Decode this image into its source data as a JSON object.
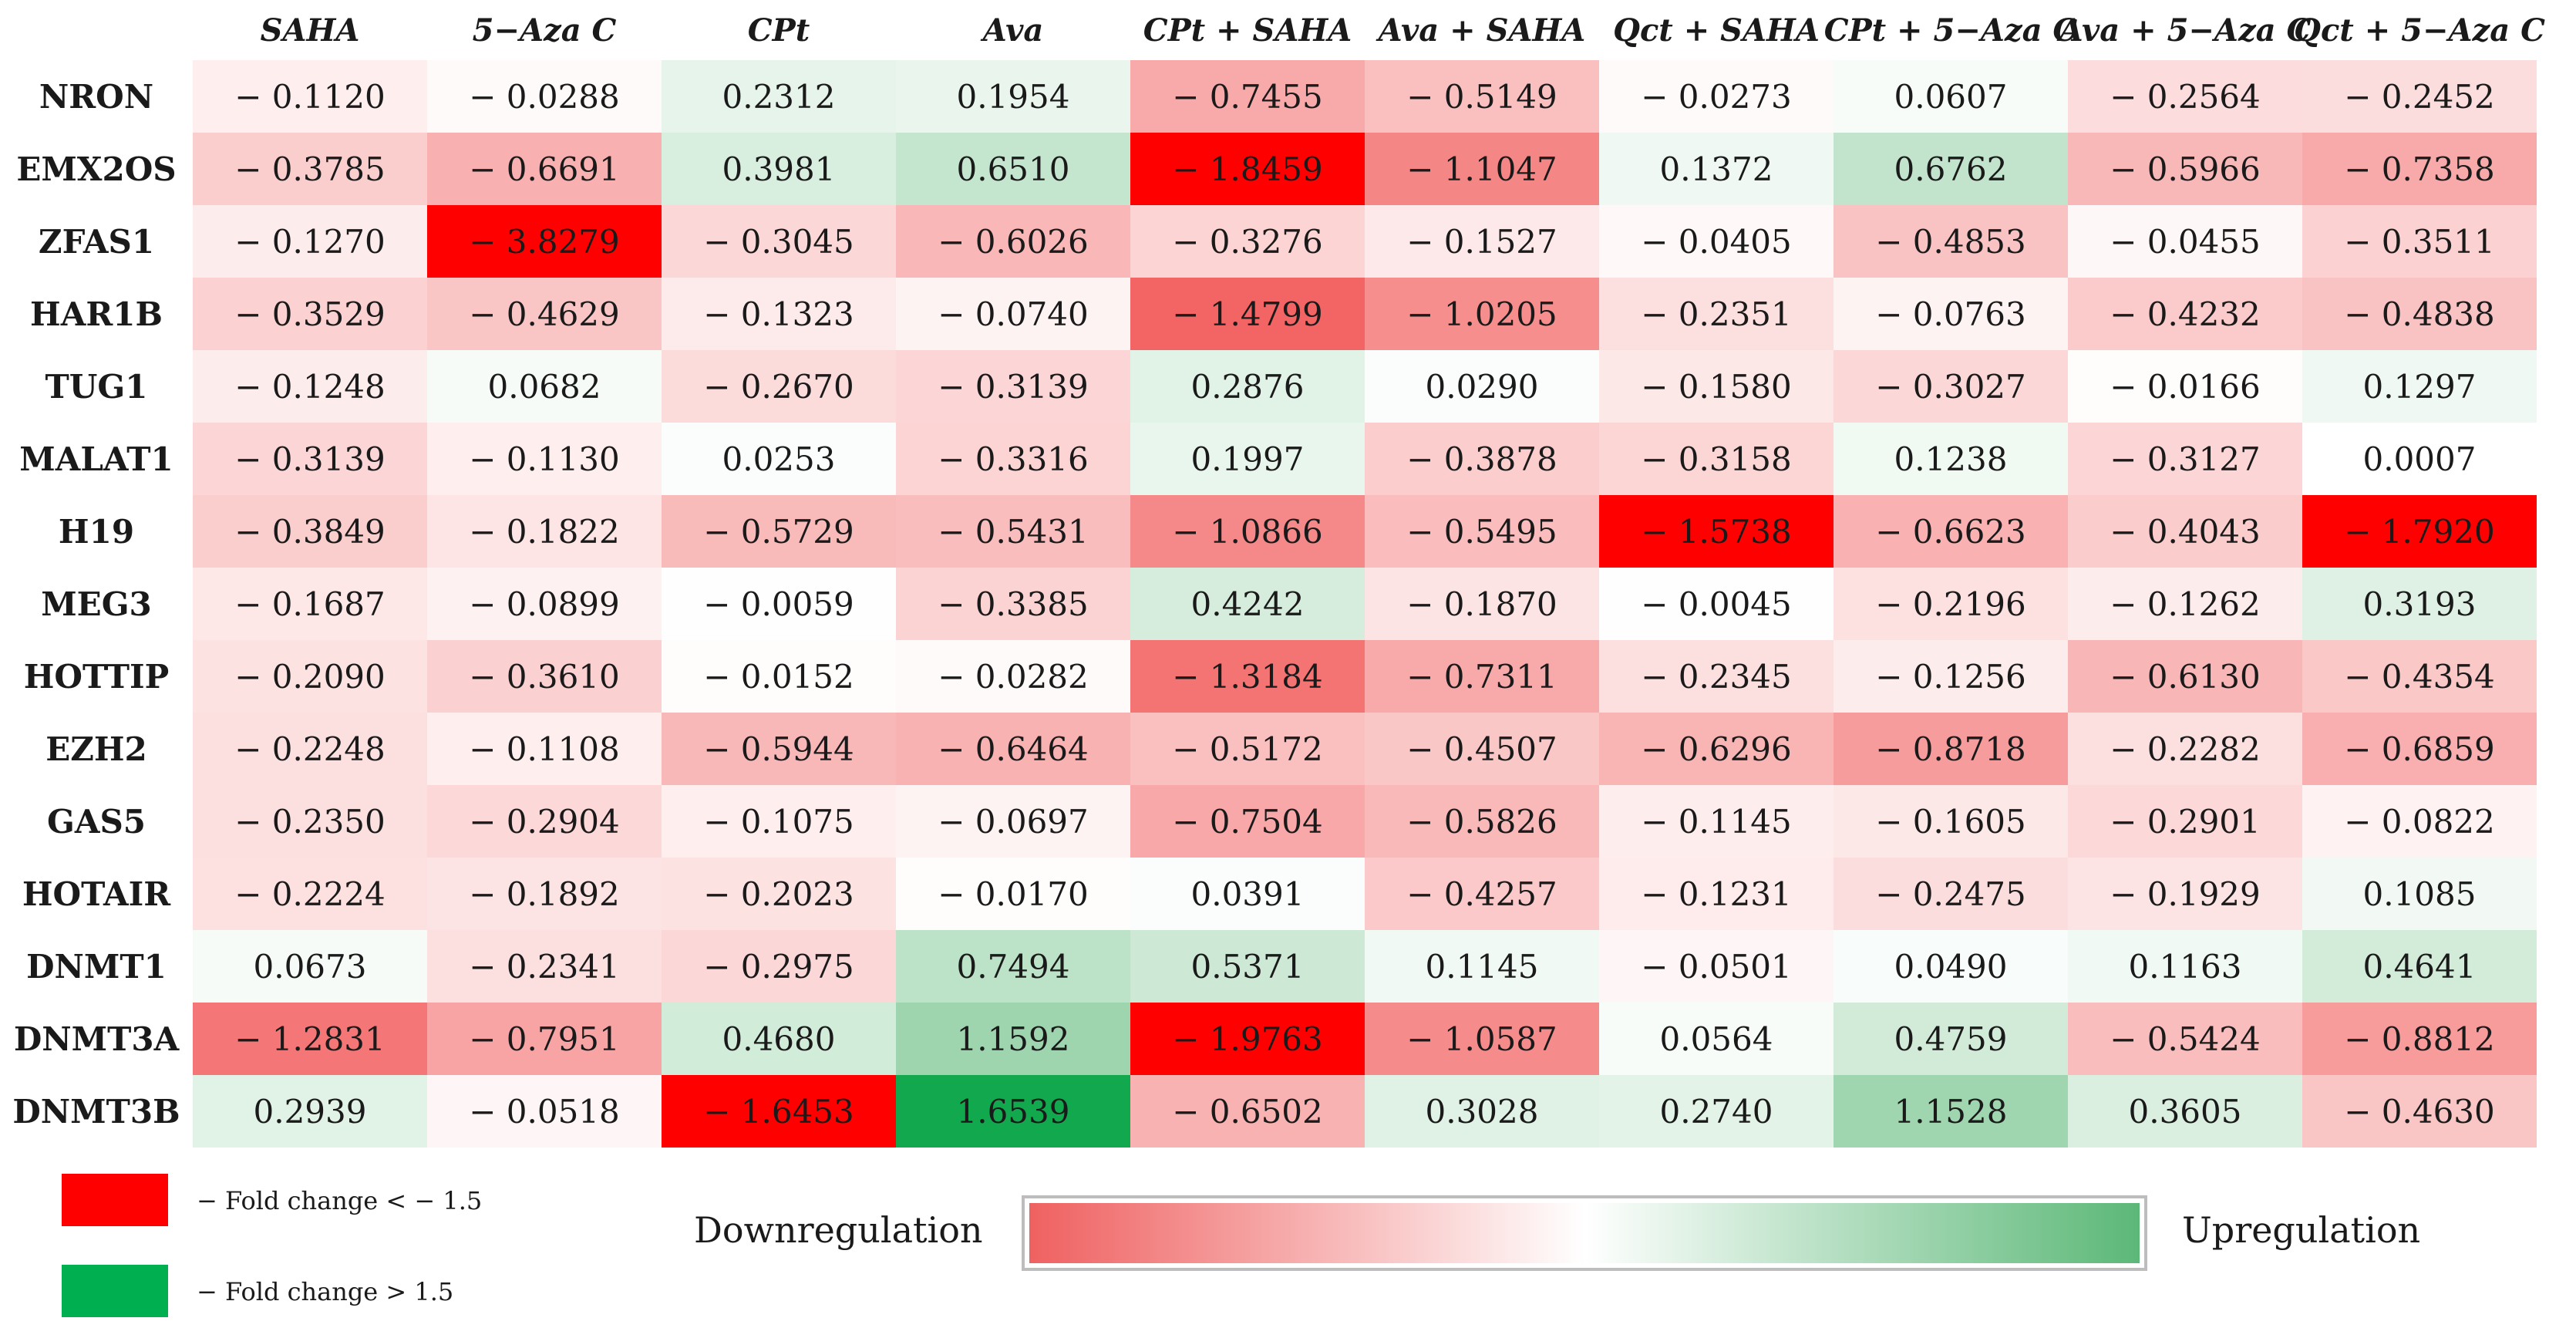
{
  "chart_data": {
    "type": "heatmap",
    "title": "",
    "columns": [
      "SAHA",
      "5−Aza C",
      "CPt",
      "Ava",
      "CPt + SAHA",
      "Ava + SAHA",
      "Qct + SAHA",
      "CPt + 5−Aza C",
      "Ava + 5−Aza C",
      "Qct + 5−Aza C"
    ],
    "rows": [
      "NRON",
      "EMX2OS",
      "ZFAS1",
      "HAR1B",
      "TUG1",
      "MALAT1",
      "H19",
      "MEG3",
      "HOTTIP",
      "EZH2",
      "GAS5",
      "HOTAIR",
      "DNMT1",
      "DNMT3A",
      "DNMT3B"
    ],
    "values": [
      [
        -0.112,
        -0.0288,
        0.2312,
        0.1954,
        -0.7455,
        -0.5149,
        -0.0273,
        0.0607,
        -0.2564,
        -0.2452
      ],
      [
        -0.3785,
        -0.6691,
        0.3981,
        0.651,
        -1.8459,
        -1.1047,
        0.1372,
        0.6762,
        -0.5966,
        -0.7358
      ],
      [
        -0.127,
        -3.8279,
        -0.3045,
        -0.6026,
        -0.3276,
        -0.1527,
        -0.0405,
        -0.4853,
        -0.0455,
        -0.3511
      ],
      [
        -0.3529,
        -0.4629,
        -0.1323,
        -0.074,
        -1.4799,
        -1.0205,
        -0.2351,
        -0.0763,
        -0.4232,
        -0.4838
      ],
      [
        -0.1248,
        0.0682,
        -0.267,
        -0.3139,
        0.2876,
        0.029,
        -0.158,
        -0.3027,
        -0.0166,
        0.1297
      ],
      [
        -0.3139,
        -0.113,
        0.0253,
        -0.3316,
        0.1997,
        -0.3878,
        -0.3158,
        0.1238,
        -0.3127,
        0.0007
      ],
      [
        -0.3849,
        -0.1822,
        -0.5729,
        -0.5431,
        -1.0866,
        -0.5495,
        -1.5738,
        -0.6623,
        -0.4043,
        -1.792
      ],
      [
        -0.1687,
        -0.0899,
        -0.0059,
        -0.3385,
        0.4242,
        -0.187,
        -0.0045,
        -0.2196,
        -0.1262,
        0.3193
      ],
      [
        -0.209,
        -0.361,
        -0.0152,
        -0.0282,
        -1.3184,
        -0.7311,
        -0.2345,
        -0.1256,
        -0.613,
        -0.4354
      ],
      [
        -0.2248,
        -0.1108,
        -0.5944,
        -0.6464,
        -0.5172,
        -0.4507,
        -0.6296,
        -0.8718,
        -0.2282,
        -0.6859
      ],
      [
        -0.235,
        -0.2904,
        -0.1075,
        -0.0697,
        -0.7504,
        -0.5826,
        -0.1145,
        -0.1605,
        -0.2901,
        -0.0822
      ],
      [
        -0.2224,
        -0.1892,
        -0.2023,
        -0.017,
        0.0391,
        -0.4257,
        -0.1231,
        -0.2475,
        -0.1929,
        0.1085
      ],
      [
        0.0673,
        -0.2341,
        -0.2975,
        0.7494,
        0.5371,
        0.1145,
        -0.0501,
        0.049,
        0.1163,
        0.4641
      ],
      [
        -1.2831,
        -0.7951,
        0.468,
        1.1592,
        -1.9763,
        -1.0587,
        0.0564,
        0.4759,
        -0.5424,
        -0.8812
      ],
      [
        0.2939,
        -0.0518,
        -1.6453,
        1.6539,
        -0.6502,
        0.3028,
        0.274,
        1.1528,
        0.3605,
        -0.463
      ]
    ],
    "color_scale": {
      "negative_color": "#ee2b2b",
      "neutral_color": "#ffffff",
      "positive_color": "#5cb878",
      "threshold_down_color": "#ff0000",
      "threshold_up_color": "#12a84e",
      "threshold": 1.5,
      "saturation_value": 1.6
    }
  },
  "legend": {
    "down": {
      "color": "#ff0000",
      "text": "− Fold change < − 1.5"
    },
    "up": {
      "color": "#00b050",
      "text": "− Fold change > 1.5"
    }
  },
  "gradient_legend": {
    "left_label": "Downregulation",
    "right_label": "Upregulation",
    "colors": [
      "#ef6161",
      "#ffffff",
      "#5cb878"
    ]
  }
}
